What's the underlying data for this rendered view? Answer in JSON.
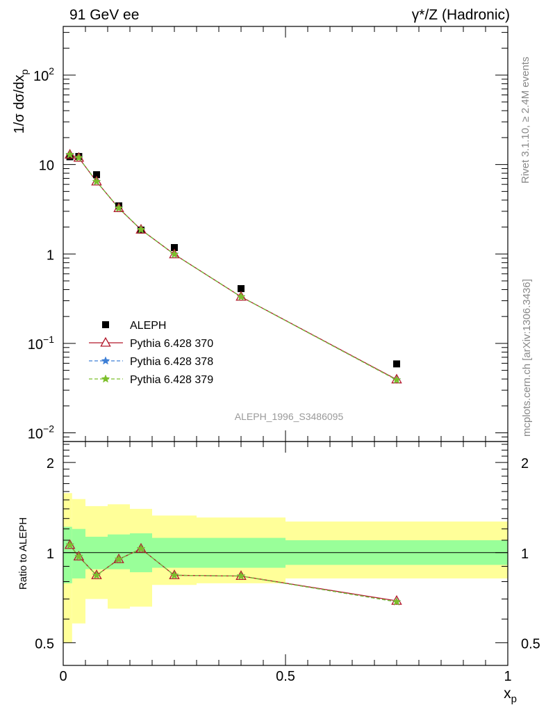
{
  "header": {
    "left": "91 GeV ee",
    "right": "γ*/Z (Hadronic)"
  },
  "side_labels": {
    "rivet": "Rivet 3.1.10, ≥ 2.4M events",
    "mcplots": "mcplots.cern.ch [arXiv:1306.3436]"
  },
  "watermark": "ALEPH_1996_S3486095",
  "chart_data": [
    {
      "type": "scatter",
      "panel": "main",
      "y_scale": "log",
      "ylabel": "1/σ dσ/dx",
      "ylabel_sub": "p",
      "xlim": [
        0,
        1
      ],
      "ylim": [
        0.008,
        350
      ],
      "y_ticks": [
        {
          "v": 0.01,
          "base": "10",
          "exp": "−2"
        },
        {
          "v": 0.1,
          "base": "10",
          "exp": "−1"
        },
        {
          "v": 1,
          "base": "1",
          "exp": ""
        },
        {
          "v": 10,
          "base": "10",
          "exp": ""
        },
        {
          "v": 100,
          "base": "10",
          "exp": "2"
        }
      ],
      "legend_position": "middle-left",
      "series": [
        {
          "name": "ALEPH",
          "kind": "data",
          "color": "#000000",
          "x": [
            0.015,
            0.035,
            0.075,
            0.125,
            0.175,
            0.25,
            0.4,
            0.75
          ],
          "y": [
            12.2,
            12.3,
            7.7,
            3.45,
            1.85,
            1.18,
            0.41,
            0.059
          ]
        },
        {
          "name": "Pythia 6.428 370",
          "kind": "mc",
          "color": "#b2182b",
          "marker": "triangle",
          "dash": "",
          "x": [
            0.015,
            0.035,
            0.075,
            0.125,
            0.175,
            0.25,
            0.4,
            0.75
          ],
          "y": [
            12.9,
            11.9,
            6.45,
            3.25,
            1.87,
            0.99,
            0.332,
            0.0395
          ]
        },
        {
          "name": "Pythia 6.428 378",
          "kind": "mc",
          "color": "#3d7fd6",
          "marker": "star",
          "dash": "5,3",
          "x": [
            0.015,
            0.035,
            0.075,
            0.125,
            0.175,
            0.25,
            0.4,
            0.75
          ],
          "y": [
            12.9,
            11.9,
            6.45,
            3.25,
            1.87,
            0.99,
            0.332,
            0.039
          ]
        },
        {
          "name": "Pythia 6.428 379",
          "kind": "mc",
          "color": "#7cbf2a",
          "marker": "star",
          "dash": "5,3",
          "x": [
            0.015,
            0.035,
            0.075,
            0.125,
            0.175,
            0.25,
            0.4,
            0.75
          ],
          "y": [
            12.9,
            11.9,
            6.45,
            3.25,
            1.87,
            0.99,
            0.332,
            0.039
          ]
        }
      ]
    },
    {
      "type": "scatter",
      "panel": "ratio",
      "y_scale": "log",
      "ylabel": "Ratio to ALEPH",
      "xlabel": "x",
      "xlabel_sub": "p",
      "xlim": [
        0,
        1
      ],
      "ylim": [
        0.42,
        2.35
      ],
      "y_ticks": [
        0.5,
        1,
        2
      ],
      "x_ticks": [
        0,
        0.5,
        1
      ],
      "bands": {
        "edges": [
          0,
          0.02,
          0.05,
          0.1,
          0.15,
          0.2,
          0.3,
          0.5,
          1.0
        ],
        "inner": [
          [
            0.79,
            1.22
          ],
          [
            0.82,
            1.2
          ],
          [
            0.88,
            1.13
          ],
          [
            0.88,
            1.15
          ],
          [
            0.86,
            1.16
          ],
          [
            0.89,
            1.12
          ],
          [
            0.89,
            1.12
          ],
          [
            0.91,
            1.1
          ]
        ],
        "outer": [
          [
            0.5,
            1.58
          ],
          [
            0.58,
            1.51
          ],
          [
            0.7,
            1.43
          ],
          [
            0.65,
            1.45
          ],
          [
            0.66,
            1.4
          ],
          [
            0.78,
            1.33
          ],
          [
            0.79,
            1.31
          ],
          [
            0.82,
            1.27
          ]
        ],
        "inner_color": "#99ff99",
        "outer_color": "#ffff99"
      },
      "series": [
        {
          "name": "Pythia 6.428 370",
          "color": "#b2182b",
          "marker": "triangle",
          "dash": "",
          "x": [
            0.015,
            0.035,
            0.075,
            0.125,
            0.175,
            0.25,
            0.4,
            0.75
          ],
          "y": [
            1.06,
            0.97,
            0.84,
            0.95,
            1.03,
            0.84,
            0.835,
            0.69
          ]
        },
        {
          "name": "Pythia 6.428 378",
          "color": "#3d7fd6",
          "marker": "star",
          "dash": "5,3",
          "x": [
            0.015,
            0.035,
            0.075,
            0.125,
            0.175,
            0.25,
            0.4,
            0.75
          ],
          "y": [
            1.06,
            0.97,
            0.84,
            0.95,
            1.03,
            0.84,
            0.835,
            0.685
          ]
        },
        {
          "name": "Pythia 6.428 379",
          "color": "#7cbf2a",
          "marker": "star",
          "dash": "5,3",
          "x": [
            0.015,
            0.035,
            0.075,
            0.125,
            0.175,
            0.25,
            0.4,
            0.75
          ],
          "y": [
            1.06,
            0.97,
            0.84,
            0.95,
            1.03,
            0.84,
            0.835,
            0.685
          ]
        }
      ]
    }
  ]
}
